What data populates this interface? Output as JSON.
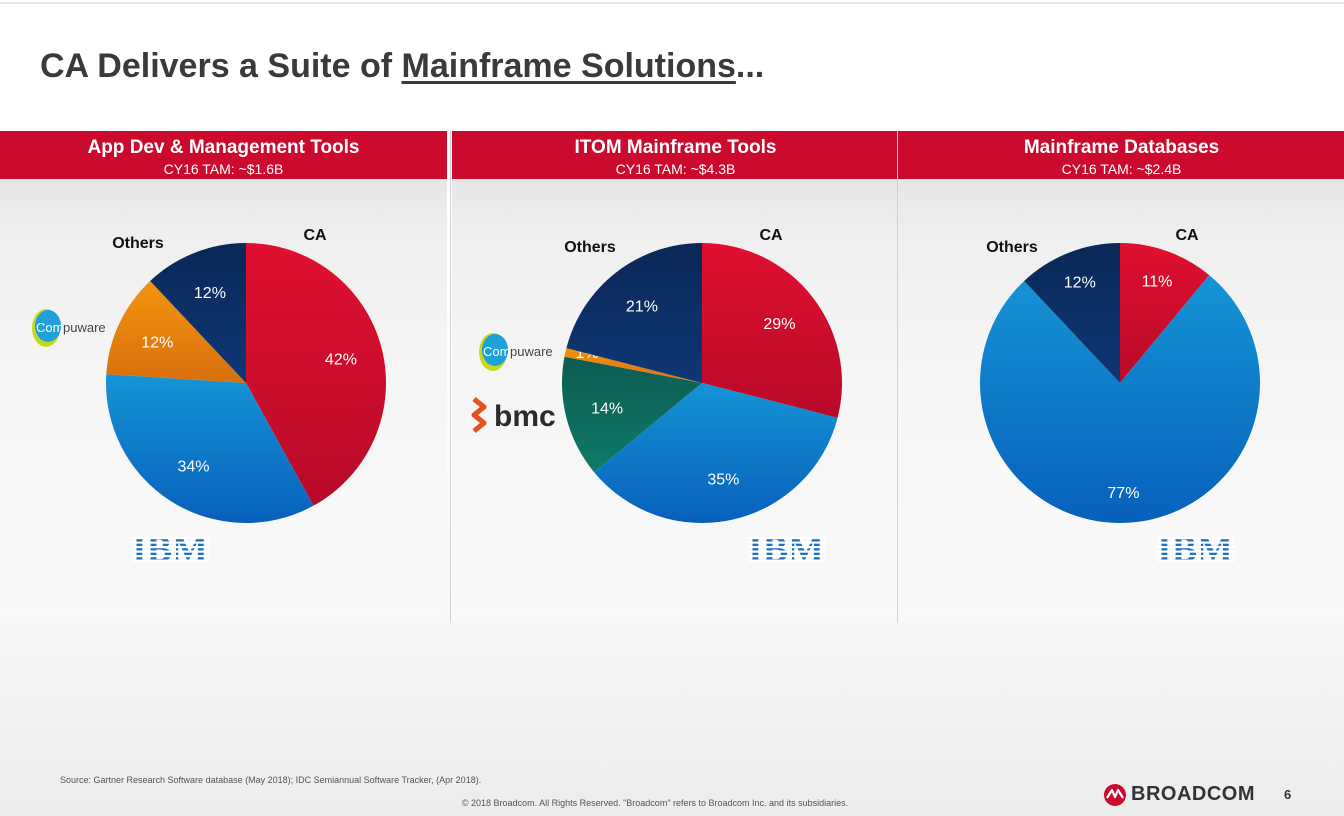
{
  "slide": {
    "title_main": "CA Delivers a Suite of ",
    "title_underlined": "Mainframe Solutions",
    "title_tail": "...",
    "source": "Source: Gartner Research Software database (May 2018); IDC Semiannual Software Tracker, (Apr 2018).",
    "copyright": "© 2018 Broadcom.  All Rights Reserved.  \"Broadcom\" refers to Broadcom Inc. and its subsidiaries.",
    "brand": "BROADCOM",
    "page_number": "6"
  },
  "logos": {
    "compuware": "Compuware",
    "bmc": "bmc",
    "ibm": "IBM"
  },
  "colors": {
    "ca": "#d50b2e",
    "ibm": "#0a7ac9",
    "others": "#0b2c63",
    "compuware": "#e9820f",
    "bmc": "#0d6b5c",
    "header": "#cc0a2e"
  },
  "panels": [
    {
      "title": "App Dev & Management Tools",
      "subtitle": "CY16 TAM: ~$1.6B"
    },
    {
      "title": "ITOM Mainframe Tools",
      "subtitle": "CY16 TAM: ~$4.3B"
    },
    {
      "title": "Mainframe Databases",
      "subtitle": "CY16 TAM: ~$2.4B"
    }
  ],
  "chart_data": [
    {
      "type": "pie",
      "title": "App Dev & Management Tools",
      "subtitle": "CY16 TAM: ~$1.6B",
      "slices": [
        {
          "name": "CA",
          "value": 42,
          "label": "42%",
          "color": "#d50b2e"
        },
        {
          "name": "IBM",
          "value": 34,
          "label": "34%",
          "color": "#0a7ac9"
        },
        {
          "name": "Compuware",
          "value": 12,
          "label": "12%",
          "color": "#e9820f"
        },
        {
          "name": "Others",
          "value": 12,
          "label": "12%",
          "color": "#0b2c63"
        }
      ],
      "callouts": [
        "Others",
        "CA"
      ]
    },
    {
      "type": "pie",
      "title": "ITOM Mainframe Tools",
      "subtitle": "CY16 TAM: ~$4.3B",
      "slices": [
        {
          "name": "CA",
          "value": 29,
          "label": "29%",
          "color": "#d50b2e"
        },
        {
          "name": "IBM",
          "value": 35,
          "label": "35%",
          "color": "#0a7ac9"
        },
        {
          "name": "bmc",
          "value": 14,
          "label": "14%",
          "color": "#0d6b5c"
        },
        {
          "name": "Compuware",
          "value": 1,
          "label": "1%",
          "color": "#e9820f"
        },
        {
          "name": "Others",
          "value": 21,
          "label": "21%",
          "color": "#0b2c63"
        }
      ],
      "callouts": [
        "Others",
        "CA"
      ]
    },
    {
      "type": "pie",
      "title": "Mainframe Databases",
      "subtitle": "CY16 TAM: ~$2.4B",
      "slices": [
        {
          "name": "CA",
          "value": 11,
          "label": "11%",
          "color": "#d50b2e"
        },
        {
          "name": "IBM",
          "value": 77,
          "label": "77%",
          "color": "#0a7ac9"
        },
        {
          "name": "Others",
          "value": 12,
          "label": "12%",
          "color": "#0b2c63"
        }
      ],
      "callouts": [
        "Others",
        "CA"
      ]
    }
  ]
}
